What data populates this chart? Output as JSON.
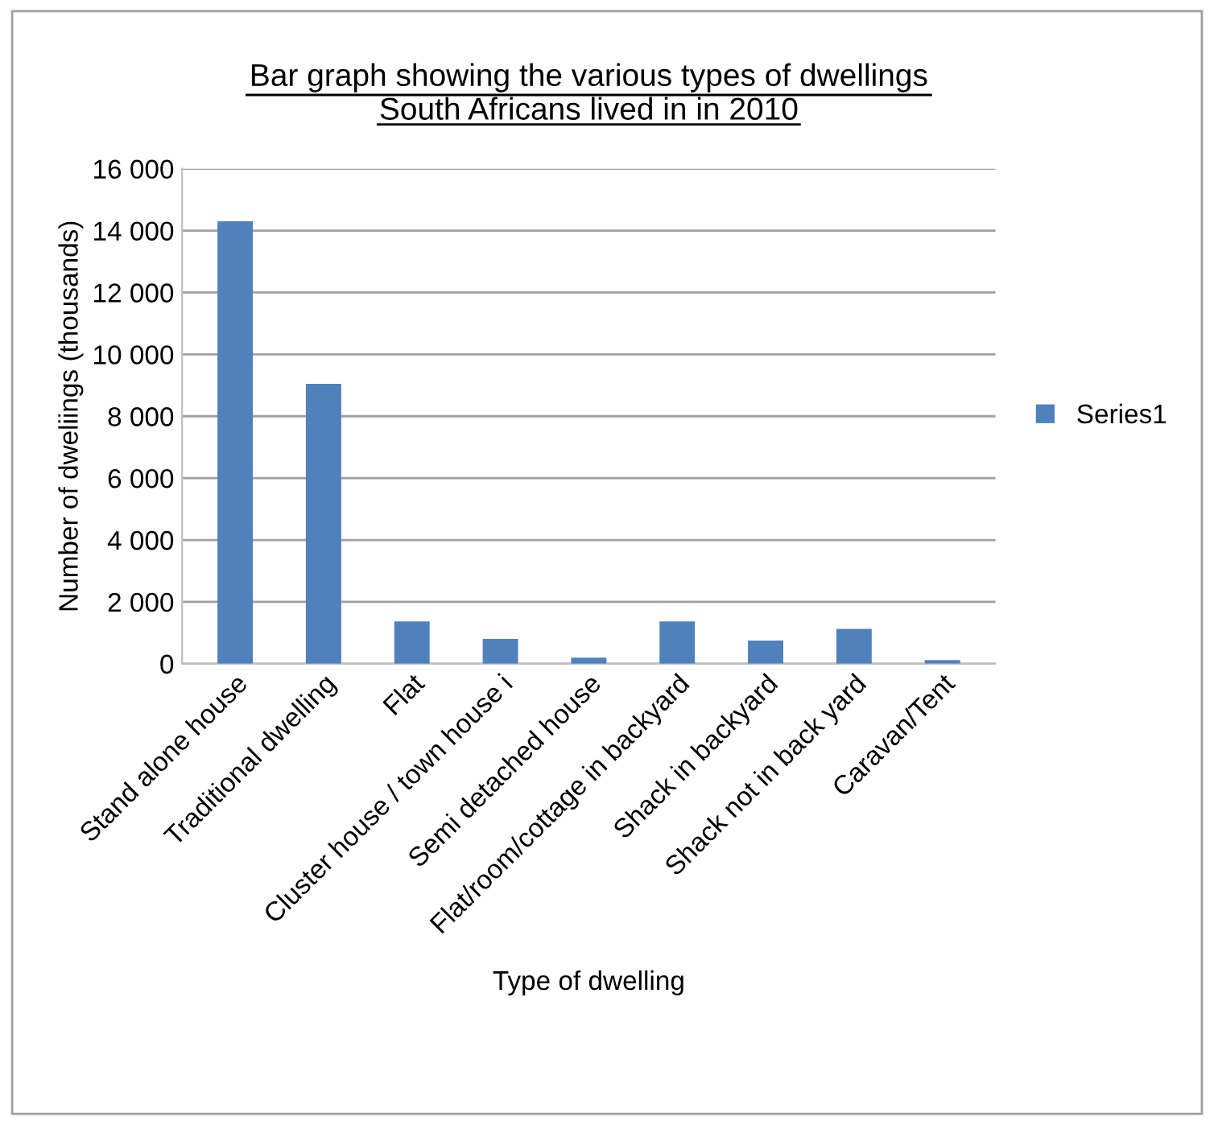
{
  "chart_data": {
    "type": "bar",
    "title": "Bar graph showing the various types of dwellings\nSouth Africans lived in in 2010",
    "xlabel": "Type of dwelling",
    "ylabel": "Number of dweliings (thousands)",
    "categories": [
      "Stand alone house",
      "Traditional dwelling",
      "Flat",
      "Cluster house / town house i",
      "Semi detached house",
      "Flat/room/cottage in backyard",
      "Shack in backyard",
      "Shack not in back yard",
      "Caravan/Tent"
    ],
    "series": [
      {
        "name": "Series1",
        "color": "#4f81bd",
        "values": [
          14300,
          9050,
          1370,
          800,
          200,
          1370,
          750,
          1130,
          120
        ]
      }
    ],
    "ylim": [
      0,
      16000
    ],
    "yticks": [
      0,
      {
        "value": 2000,
        "label": "2 000"
      },
      {
        "value": 4000,
        "label": "4 000"
      },
      {
        "value": 6000,
        "label": "6 000"
      },
      {
        "value": 8000,
        "label": "8 000"
      },
      {
        "value": 10000,
        "label": "10 000"
      },
      {
        "value": 12000,
        "label": "12 000"
      },
      {
        "value": 14000,
        "label": "14 000"
      },
      {
        "value": 16000,
        "label": "16 000"
      }
    ],
    "grid": "y",
    "legend": "right"
  }
}
